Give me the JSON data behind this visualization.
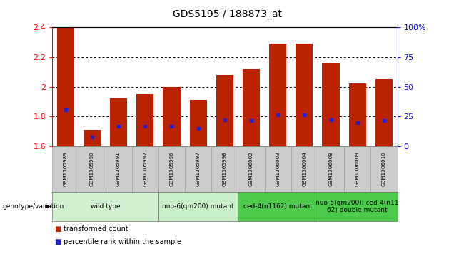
{
  "title": "GDS5195 / 188873_at",
  "samples": [
    "GSM1305989",
    "GSM1305990",
    "GSM1305991",
    "GSM1305992",
    "GSM1305996",
    "GSM1305997",
    "GSM1305998",
    "GSM1306002",
    "GSM1306003",
    "GSM1306004",
    "GSM1306008",
    "GSM1306009",
    "GSM1306010"
  ],
  "red_values": [
    2.4,
    1.71,
    1.92,
    1.95,
    2.0,
    1.91,
    2.08,
    2.12,
    2.29,
    2.29,
    2.16,
    2.02,
    2.05
  ],
  "blue_values_left_scale": [
    1.845,
    1.665,
    1.735,
    1.735,
    1.735,
    1.72,
    1.78,
    1.775,
    1.81,
    1.81,
    1.78,
    1.76,
    1.775
  ],
  "group_boundaries": [
    0,
    4,
    7,
    10,
    13
  ],
  "group_labels": [
    "wild type",
    "nuo-6(qm200) mutant",
    "ced-4(n1162) mutant",
    "nuo-6(qm200); ced-4(n11\n62) double mutant"
  ],
  "group_colors": [
    "#d0f0d0",
    "#c8eec8",
    "#4cca4c",
    "#4cca4c"
  ],
  "ylim_left": [
    1.6,
    2.4
  ],
  "ylim_right": [
    0,
    100
  ],
  "yticks_left": [
    1.6,
    1.8,
    2.0,
    2.2,
    2.4
  ],
  "yticks_right": [
    0,
    25,
    50,
    75,
    100
  ],
  "bar_color": "#bb2200",
  "blue_color": "#2222cc",
  "bar_width": 0.65,
  "legend_red": "transformed count",
  "legend_blue": "percentile rank within the sample",
  "genotype_label": "genotype/variation"
}
